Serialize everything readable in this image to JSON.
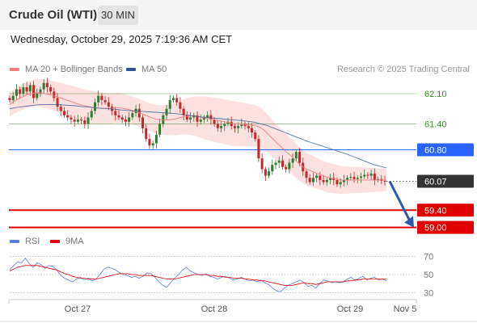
{
  "header": {
    "instrument": "Crude Oil (WTI)",
    "timeframe": "30 MIN",
    "datetime": "Wednesday, October 29, 2025 7:19:36 AM CET"
  },
  "legend": {
    "ma20_label": "MA 20 + Bollinger Bands",
    "ma20_color": "#f08080",
    "ma50_label": "MA 50",
    "ma50_color": "#2f5597",
    "credit": "Research © 2025 Trading Central"
  },
  "rsi_legend": {
    "rsi_label": "RSI",
    "rsi_color": "#5b7fd6",
    "ma_label": "9MA",
    "ma_color": "#e00000"
  },
  "chart_data": {
    "type": "candlestick",
    "ylim": [
      58.9,
      62.4
    ],
    "x_ticks": [
      "Oct 27",
      "Oct 28",
      "Oct 29",
      "Nov 5"
    ],
    "colors": {
      "up": "#2e7d32",
      "down": "#c62828",
      "pivot": "#2962ff",
      "last": "#333333",
      "support": "#e00000",
      "resistance_label": "#3a8a2a"
    },
    "closes": [
      61.95,
      62.05,
      62.2,
      62.1,
      62.25,
      62.15,
      62.3,
      62.0,
      62.1,
      62.2,
      62.35,
      62.25,
      62.15,
      62.0,
      61.8,
      61.7,
      61.6,
      61.55,
      61.5,
      61.45,
      61.5,
      61.48,
      61.4,
      61.55,
      61.7,
      61.9,
      62.05,
      61.95,
      61.9,
      61.8,
      61.7,
      61.6,
      61.55,
      61.5,
      61.45,
      61.55,
      61.65,
      61.75,
      61.55,
      61.3,
      61.05,
      60.9,
      60.95,
      61.15,
      61.4,
      61.6,
      61.75,
      61.95,
      62.0,
      61.9,
      61.75,
      61.6,
      61.5,
      61.55,
      61.6,
      61.45,
      61.5,
      61.55,
      61.6,
      61.5,
      61.4,
      61.3,
      61.35,
      61.4,
      61.45,
      61.35,
      61.3,
      61.35,
      61.4,
      61.35,
      61.3,
      61.2,
      61.05,
      60.6,
      60.35,
      60.2,
      60.3,
      60.45,
      60.5,
      60.55,
      60.4,
      60.35,
      60.5,
      60.6,
      60.75,
      60.5,
      60.3,
      60.15,
      60.05,
      60.15,
      60.2,
      60.1,
      60.05,
      60.1,
      60.15,
      60.1,
      60.0,
      60.05,
      60.1,
      60.15,
      60.17,
      60.12,
      60.15,
      60.18,
      60.22,
      60.2,
      60.25,
      60.1,
      60.12,
      60.08,
      60.07
    ],
    "ma20_values": [
      61.85,
      61.92,
      61.98,
      62.03,
      62.08,
      62.1,
      62.12,
      62.12,
      62.1,
      62.08,
      62.05,
      62.02,
      61.99,
      61.95,
      61.92,
      61.88,
      61.85,
      61.82,
      61.8,
      61.78,
      61.77,
      61.76,
      61.76,
      61.76,
      61.77,
      61.77,
      61.76,
      61.74,
      61.71,
      61.68,
      61.64,
      61.6,
      61.56,
      61.52,
      61.5,
      61.49,
      61.49,
      61.5,
      61.52,
      61.55,
      61.57,
      61.58,
      61.58,
      61.57,
      61.55,
      61.53,
      61.51,
      61.49,
      61.47,
      61.45,
      61.43,
      61.41,
      61.4,
      61.39,
      61.38,
      61.37,
      61.36,
      61.33,
      61.26,
      61.16,
      61.06,
      60.96,
      60.86,
      60.76,
      60.68,
      60.58,
      60.48,
      60.4,
      60.34,
      60.3,
      60.26,
      60.22,
      60.18,
      60.15,
      60.13,
      60.11,
      60.1,
      60.1,
      60.1,
      60.1,
      60.1,
      60.1,
      60.1,
      60.1,
      60.1,
      60.1,
      60.1
    ],
    "ma50_values": [
      61.75,
      61.78,
      61.8,
      61.82,
      61.84,
      61.85,
      61.85,
      61.85,
      61.84,
      61.83,
      61.82,
      61.8,
      61.79,
      61.77,
      61.76,
      61.75,
      61.74,
      61.72,
      61.71,
      61.7,
      61.69,
      61.68,
      61.67,
      61.66,
      61.65,
      61.64,
      61.62,
      61.6,
      61.58,
      61.56,
      61.55,
      61.53,
      61.52,
      61.5,
      61.49,
      61.48,
      61.46,
      61.44,
      61.4,
      61.36,
      61.3,
      61.24,
      61.18,
      61.12,
      61.06,
      61.0,
      60.95,
      60.9,
      60.85,
      60.8,
      60.75,
      60.7,
      60.64,
      60.58,
      60.52,
      60.46,
      60.42,
      60.38
    ],
    "bollinger_halfwidth": [
      0.28,
      0.3,
      0.32,
      0.34,
      0.36,
      0.38,
      0.38,
      0.36,
      0.34,
      0.32,
      0.32,
      0.34,
      0.38,
      0.44,
      0.5,
      0.52,
      0.52,
      0.5,
      0.46,
      0.42,
      0.4,
      0.38,
      0.36,
      0.34,
      0.32,
      0.3,
      0.28,
      0.26
    ],
    "levels": [
      {
        "value": 62.1,
        "label": "62.10",
        "kind": "resistance"
      },
      {
        "value": 61.4,
        "label": "61.40",
        "kind": "resistance"
      },
      {
        "value": 60.8,
        "label": "60.80",
        "kind": "pivot"
      },
      {
        "value": 60.07,
        "label": "60.07",
        "kind": "last"
      },
      {
        "value": 59.4,
        "label": "59.40",
        "kind": "support"
      },
      {
        "value": 59.0,
        "label": "59.00",
        "kind": "support"
      }
    ],
    "projection": {
      "from": 60.07,
      "to": 59.0
    }
  },
  "rsi_data": {
    "ylim": [
      25,
      75
    ],
    "ticks": [
      "70",
      "50",
      "30"
    ],
    "tick_values": [
      70,
      50,
      30
    ],
    "rsi_values": [
      55,
      60,
      64,
      63,
      68,
      62,
      58,
      63,
      61,
      57,
      60,
      59,
      55,
      49,
      46,
      44,
      42,
      45,
      47,
      44,
      46,
      43,
      45,
      50,
      56,
      58,
      57,
      55,
      52,
      50,
      49,
      47,
      48,
      46,
      48,
      52,
      51,
      47,
      42,
      38,
      36,
      41,
      46,
      50,
      55,
      58,
      54,
      52,
      50,
      49,
      51,
      48,
      47,
      45,
      47,
      48,
      46,
      44,
      45,
      47,
      45,
      43,
      44,
      42,
      44,
      41,
      39,
      35,
      32,
      31,
      35,
      38,
      40,
      42,
      44,
      41,
      37,
      38,
      35,
      40,
      44,
      43,
      41,
      42,
      41,
      42,
      45,
      47,
      43,
      46,
      48,
      44,
      46,
      47,
      44,
      45,
      43
    ],
    "ma_values": [
      54,
      56,
      58,
      59,
      60,
      60,
      60,
      60,
      59,
      58,
      57,
      56,
      55,
      53,
      51,
      50,
      48,
      47,
      46,
      46,
      45,
      45,
      45,
      46,
      47,
      48,
      49,
      50,
      51,
      51,
      51,
      50,
      50,
      49,
      49,
      49,
      49,
      48,
      47,
      46,
      45,
      45,
      45,
      46,
      47,
      48,
      49,
      50,
      50,
      50,
      50,
      49,
      49,
      48,
      48,
      47,
      47,
      46,
      46,
      46,
      45,
      45,
      44,
      44,
      43,
      43,
      42,
      41,
      40,
      39,
      38,
      38,
      38,
      39,
      40,
      41,
      40,
      40,
      39,
      40,
      41,
      42,
      42,
      42,
      42,
      42,
      43,
      43,
      44,
      44,
      45,
      45,
      45,
      45,
      45,
      45,
      45
    ]
  }
}
